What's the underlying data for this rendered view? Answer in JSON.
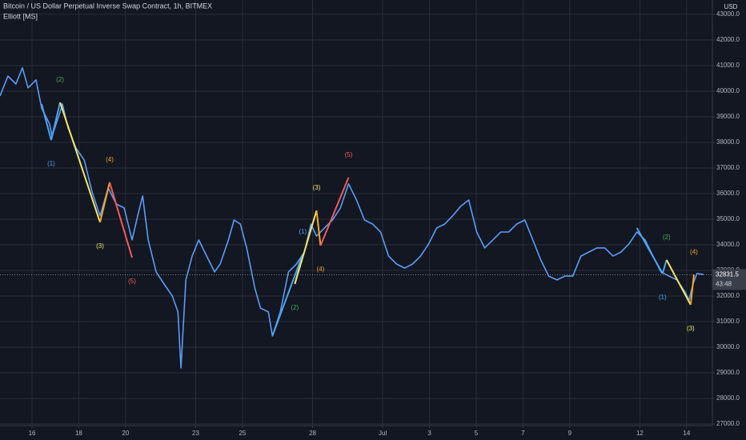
{
  "chart_data": {
    "type": "line",
    "title": "Bitcoin / US Dollar Perpetual Inverse Swap Contract, 1h, BITMEX",
    "subtitle": "Elliott [MS]",
    "y_axis_label": "USD",
    "color": "#5b9cf6",
    "x": [
      14.63,
      14.97,
      15.31,
      15.59,
      15.83,
      16.17,
      16.41,
      16.75,
      16.86,
      17.2,
      17.3,
      17.54,
      17.88,
      18.23,
      18.57,
      18.91,
      19.26,
      19.6,
      19.94,
      20.28,
      20.52,
      20.73,
      20.97,
      21.31,
      21.65,
      22.0,
      22.24,
      22.37,
      22.58,
      22.85,
      23.13,
      23.47,
      23.81,
      24.05,
      24.4,
      24.64,
      24.91,
      25.18,
      25.53,
      25.77,
      26.11,
      26.28,
      26.62,
      26.97,
      27.31,
      27.65,
      27.93,
      28.17,
      28.51,
      28.85,
      29.19,
      29.54,
      29.88,
      30.22,
      30.57,
      30.91,
      31.25,
      31.59,
      31.94,
      32.28,
      32.62,
      32.96,
      33.31,
      33.65,
      33.99,
      34.33,
      34.68,
      35.02,
      35.36,
      35.71,
      36.05,
      36.39,
      36.73,
      37.08,
      37.42,
      37.76,
      38.1,
      38.45,
      38.79,
      39.13,
      39.48,
      39.82,
      40.16,
      40.5,
      40.85,
      41.19,
      41.53,
      41.87,
      42.22,
      42.56,
      42.9,
      43.24,
      43.59,
      43.93,
      44.1,
      44.27,
      44.44,
      44.72
    ],
    "values": [
      39810,
      40590,
      40280,
      40910,
      40130,
      40440,
      39340,
      38720,
      38250,
      39190,
      39500,
      38560,
      37780,
      37310,
      36060,
      35130,
      36220,
      35590,
      35440,
      34190,
      35130,
      35910,
      34190,
      32940,
      32470,
      32000,
      31380,
      29190,
      32630,
      33560,
      34190,
      33560,
      32940,
      33250,
      34190,
      34970,
      34810,
      33880,
      32310,
      31530,
      31380,
      30440,
      31380,
      32940,
      33250,
      33720,
      34810,
      34340,
      34660,
      34970,
      35440,
      36380,
      35750,
      34970,
      34810,
      34500,
      33560,
      33250,
      33090,
      33250,
      33560,
      34030,
      34660,
      34810,
      35130,
      35500,
      35750,
      34500,
      33880,
      34190,
      34500,
      34500,
      34810,
      34970,
      34190,
      33410,
      32780,
      32630,
      32780,
      32780,
      33560,
      33720,
      33880,
      33880,
      33560,
      33720,
      34030,
      34500,
      34190,
      33560,
      32940,
      32780,
      32630,
      32160,
      31840,
      32470,
      32880,
      32840
    ],
    "xlim": [
      14.63,
      45.1
    ],
    "ylim": [
      26940,
      43560
    ],
    "grid": true,
    "xticks": [
      16,
      18,
      20,
      23,
      25,
      28,
      {
        "value": 31,
        "label": "Jul"
      },
      {
        "value": 33,
        "label": "3"
      },
      {
        "value": 35,
        "label": "5"
      },
      {
        "value": 37,
        "label": "7"
      },
      {
        "value": 39,
        "label": "9"
      },
      {
        "value": 42,
        "label": "12"
      },
      {
        "value": 44,
        "label": "14"
      }
    ],
    "yticks": [
      {
        "value": 27000,
        "label": "27000.0"
      },
      {
        "value": 28000,
        "label": "28000.0"
      },
      {
        "value": 29000,
        "label": "29000.0"
      },
      {
        "value": 30000,
        "label": "30000.0"
      },
      {
        "value": 31000,
        "label": "31000.0"
      },
      {
        "value": 32000,
        "label": "32000.0"
      },
      {
        "value": 33000,
        "label": "33000.0"
      },
      {
        "value": 34000,
        "label": "34000.0"
      },
      {
        "value": 35000,
        "label": "35000.0"
      },
      {
        "value": 36000,
        "label": "36000.0"
      },
      {
        "value": 37000,
        "label": "37000.0"
      },
      {
        "value": 38000,
        "label": "38000.0"
      },
      {
        "value": 39000,
        "label": "39000.0"
      },
      {
        "value": 40000,
        "label": "40000.0"
      },
      {
        "value": 41000,
        "label": "41000.0"
      },
      {
        "value": 42000,
        "label": "42000.0"
      },
      {
        "value": 43000,
        "label": "43000.0"
      }
    ],
    "last_price": 32831.5,
    "countdown": "43:48",
    "waves": [
      {
        "x": [
          16.41,
          16.82,
          17.2,
          18.91,
          19.32,
          20.28
        ],
        "values": [
          39500,
          38090,
          39560,
          34880,
          36440,
          33500
        ],
        "colors": [
          "#4da3f0",
          "#4da3f0",
          "#f5e663",
          "#f5a623",
          "#f25a5a"
        ],
        "labels": [
          "(1)",
          "(2)",
          "(3)",
          "(4)",
          "(5)"
        ],
        "label_colors": [
          "#4da3f0",
          "#4caf50",
          "#f5e663",
          "#f5a623",
          "#f25a5a"
        ]
      },
      {
        "x": [
          26.28,
          27.58,
          27.24,
          28.17,
          28.34,
          29.54
        ],
        "values": [
          30440,
          33630,
          32470,
          35340,
          33970,
          36630
        ],
        "colors": [
          "#4da3f0",
          "#4da3f0",
          "#f5e663",
          "#f5a623",
          "#f25a5a"
        ],
        "labels": [
          "(1)",
          "(2)",
          "(3)",
          "(4)",
          "(5)"
        ],
        "label_colors": [
          "#4da3f0",
          "#4caf50",
          "#f5e663",
          "#f5a623",
          "#f25a5a"
        ]
      },
      {
        "x": [
          41.87,
          42.97,
          43.14,
          44.17,
          44.31
        ],
        "values": [
          34660,
          32880,
          33410,
          31660,
          32840
        ],
        "colors": [
          "#4da3f0",
          "#4da3f0",
          "#f5e663",
          "#f5a623"
        ],
        "labels": [
          "(1)",
          "(2)",
          "(3)",
          "(4)"
        ],
        "label_colors": [
          "#4da3f0",
          "#4caf50",
          "#f5e663",
          "#f5a623"
        ]
      }
    ]
  }
}
